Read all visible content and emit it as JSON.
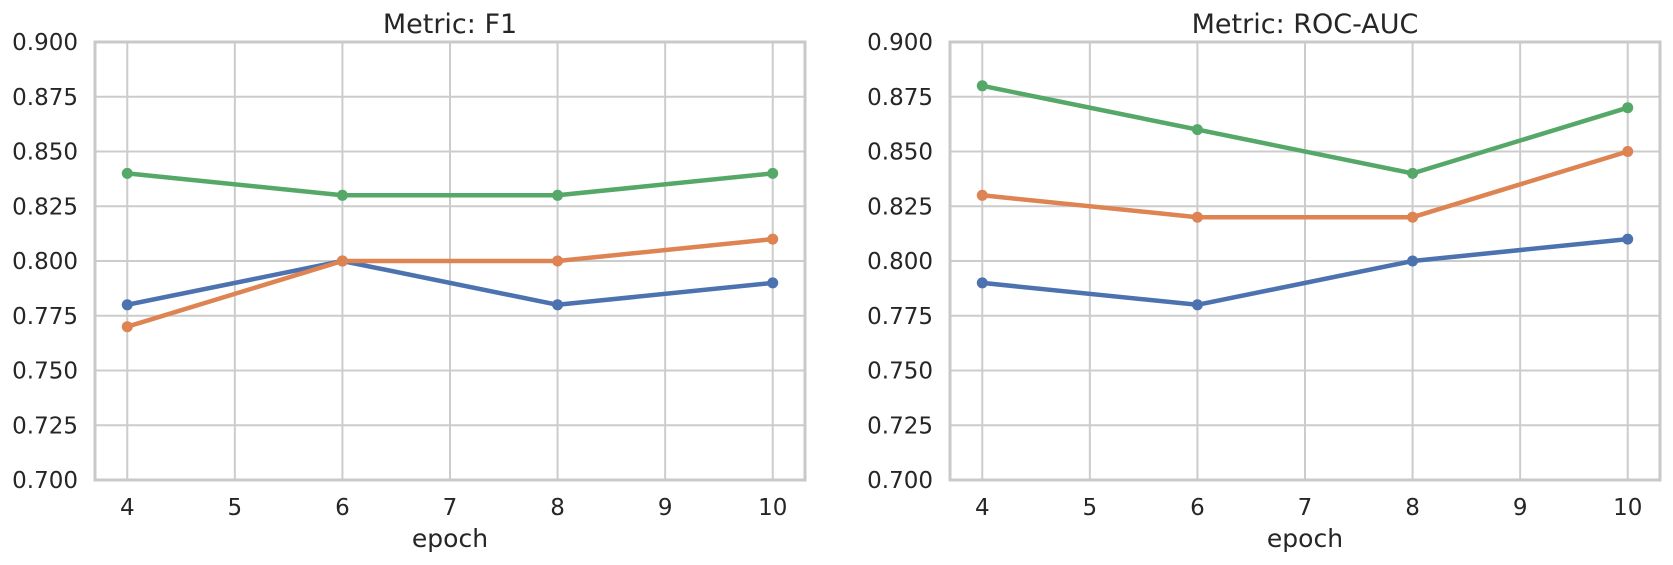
{
  "figure": {
    "background": "#ffffff",
    "grid_color": "#cccccc",
    "spine_color": "#c9c9c9",
    "text_color": "#262626"
  },
  "chart_data": [
    {
      "type": "line",
      "title": "Metric: F1",
      "xlabel": "epoch",
      "ylabel": "",
      "x": [
        4,
        6,
        8,
        10
      ],
      "xticks": [
        4,
        5,
        6,
        7,
        8,
        9,
        10
      ],
      "xtick_labels": [
        "4",
        "5",
        "6",
        "7",
        "8",
        "9",
        "10"
      ],
      "yticks": [
        0.7,
        0.725,
        0.75,
        0.775,
        0.8,
        0.825,
        0.85,
        0.875,
        0.9
      ],
      "ytick_labels": [
        "0.700",
        "0.725",
        "0.750",
        "0.775",
        "0.800",
        "0.825",
        "0.850",
        "0.875",
        "0.900"
      ],
      "xlim": [
        3.7,
        10.3
      ],
      "ylim": [
        0.7,
        0.9
      ],
      "grid": true,
      "legend": "none",
      "series": [
        {
          "name": "series-blue",
          "color": "#4C72B0",
          "values": [
            0.78,
            0.8,
            0.78,
            0.79
          ]
        },
        {
          "name": "series-orange",
          "color": "#DD8452",
          "values": [
            0.77,
            0.8,
            0.8,
            0.81
          ]
        },
        {
          "name": "series-green",
          "color": "#55A868",
          "values": [
            0.84,
            0.83,
            0.83,
            0.84
          ]
        }
      ]
    },
    {
      "type": "line",
      "title": "Metric: ROC-AUC",
      "xlabel": "epoch",
      "ylabel": "",
      "x": [
        4,
        6,
        8,
        10
      ],
      "xticks": [
        4,
        5,
        6,
        7,
        8,
        9,
        10
      ],
      "xtick_labels": [
        "4",
        "5",
        "6",
        "7",
        "8",
        "9",
        "10"
      ],
      "yticks": [
        0.7,
        0.725,
        0.75,
        0.775,
        0.8,
        0.825,
        0.85,
        0.875,
        0.9
      ],
      "ytick_labels": [
        "0.700",
        "0.725",
        "0.750",
        "0.775",
        "0.800",
        "0.825",
        "0.850",
        "0.875",
        "0.900"
      ],
      "xlim": [
        3.7,
        10.3
      ],
      "ylim": [
        0.7,
        0.9
      ],
      "grid": true,
      "legend": "none",
      "series": [
        {
          "name": "series-blue",
          "color": "#4C72B0",
          "values": [
            0.79,
            0.78,
            0.8,
            0.81
          ]
        },
        {
          "name": "series-orange",
          "color": "#DD8452",
          "values": [
            0.83,
            0.82,
            0.82,
            0.85
          ]
        },
        {
          "name": "series-green",
          "color": "#55A868",
          "values": [
            0.88,
            0.86,
            0.84,
            0.87
          ]
        }
      ]
    }
  ]
}
